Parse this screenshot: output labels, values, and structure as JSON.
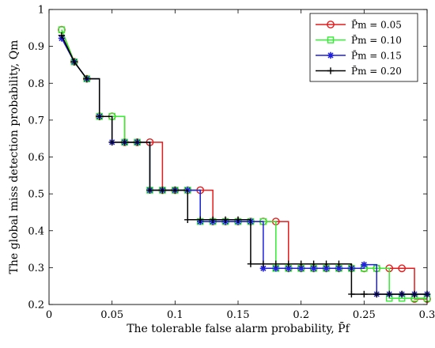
{
  "chart_data": {
    "type": "line",
    "xlabel": "The tolerable false alarm probability, P̄f",
    "ylabel": "The global miss detection probability, Qm",
    "xlim": [
      0,
      0.3
    ],
    "ylim": [
      0.2,
      1
    ],
    "xticks": [
      0,
      0.05,
      0.1,
      0.15,
      0.2,
      0.25,
      0.3
    ],
    "xtick_labels": [
      "0",
      "0.05",
      "0.1",
      "0.15",
      "0.2",
      "0.25",
      "0.3"
    ],
    "yticks": [
      0.2,
      0.3,
      0.4,
      0.5,
      0.6,
      0.7,
      0.8,
      0.9,
      1
    ],
    "ytick_labels": [
      "0.2",
      "0.3",
      "0.4",
      "0.5",
      "0.6",
      "0.7",
      "0.8",
      "0.9",
      "1"
    ],
    "grid": false,
    "legend_position": "top-right",
    "series": [
      {
        "name": "P̄m = 0.05",
        "color": "#e41a1c",
        "marker": "circle",
        "x": [
          0.01,
          0.02,
          0.03,
          0.04,
          0.05,
          0.06,
          0.07,
          0.08,
          0.09,
          0.1,
          0.11,
          0.12,
          0.13,
          0.14,
          0.15,
          0.16,
          0.17,
          0.18,
          0.19,
          0.2,
          0.21,
          0.22,
          0.23,
          0.24,
          0.25,
          0.26,
          0.27,
          0.28,
          0.29,
          0.3
        ],
        "y": [
          0.945,
          0.858,
          0.812,
          0.71,
          0.71,
          0.64,
          0.64,
          0.64,
          0.51,
          0.51,
          0.51,
          0.51,
          0.425,
          0.425,
          0.425,
          0.425,
          0.425,
          0.425,
          0.298,
          0.298,
          0.298,
          0.298,
          0.298,
          0.298,
          0.298,
          0.298,
          0.298,
          0.298,
          0.215,
          0.215
        ]
      },
      {
        "name": "P̄m = 0.10",
        "color": "#33ee33",
        "marker": "square",
        "x": [
          0.01,
          0.02,
          0.03,
          0.04,
          0.05,
          0.06,
          0.07,
          0.08,
          0.09,
          0.1,
          0.11,
          0.12,
          0.13,
          0.14,
          0.15,
          0.16,
          0.17,
          0.18,
          0.19,
          0.2,
          0.21,
          0.22,
          0.23,
          0.24,
          0.25,
          0.26,
          0.27,
          0.28,
          0.29,
          0.3
        ],
        "y": [
          0.945,
          0.858,
          0.812,
          0.71,
          0.71,
          0.64,
          0.64,
          0.51,
          0.51,
          0.51,
          0.51,
          0.425,
          0.425,
          0.425,
          0.425,
          0.425,
          0.425,
          0.298,
          0.298,
          0.298,
          0.298,
          0.298,
          0.298,
          0.298,
          0.298,
          0.298,
          0.217,
          0.217,
          0.217,
          0.217
        ]
      },
      {
        "name": "P̄m = 0.15",
        "color": "#1f1fdd",
        "marker": "asterisk",
        "x": [
          0.01,
          0.02,
          0.03,
          0.04,
          0.05,
          0.06,
          0.07,
          0.08,
          0.09,
          0.1,
          0.11,
          0.12,
          0.13,
          0.14,
          0.15,
          0.16,
          0.17,
          0.18,
          0.19,
          0.2,
          0.21,
          0.22,
          0.23,
          0.24,
          0.25,
          0.26,
          0.27,
          0.28,
          0.29,
          0.3
        ],
        "y": [
          0.922,
          0.858,
          0.812,
          0.71,
          0.64,
          0.64,
          0.64,
          0.51,
          0.51,
          0.51,
          0.51,
          0.425,
          0.425,
          0.425,
          0.425,
          0.425,
          0.298,
          0.298,
          0.298,
          0.298,
          0.298,
          0.298,
          0.298,
          0.298,
          0.308,
          0.228,
          0.228,
          0.228,
          0.228,
          0.228
        ]
      },
      {
        "name": "P̄m = 0.20",
        "color": "#000000",
        "marker": "plus",
        "x": [
          0.01,
          0.02,
          0.03,
          0.04,
          0.05,
          0.06,
          0.07,
          0.08,
          0.09,
          0.1,
          0.11,
          0.12,
          0.13,
          0.14,
          0.15,
          0.16,
          0.17,
          0.18,
          0.19,
          0.2,
          0.21,
          0.22,
          0.23,
          0.24,
          0.25,
          0.26,
          0.27,
          0.28,
          0.29,
          0.3
        ],
        "y": [
          0.93,
          0.858,
          0.812,
          0.71,
          0.64,
          0.64,
          0.64,
          0.51,
          0.51,
          0.51,
          0.43,
          0.43,
          0.43,
          0.43,
          0.43,
          0.31,
          0.31,
          0.31,
          0.31,
          0.31,
          0.31,
          0.31,
          0.31,
          0.228,
          0.228,
          0.228,
          0.228,
          0.228,
          0.228,
          0.228
        ]
      }
    ]
  }
}
